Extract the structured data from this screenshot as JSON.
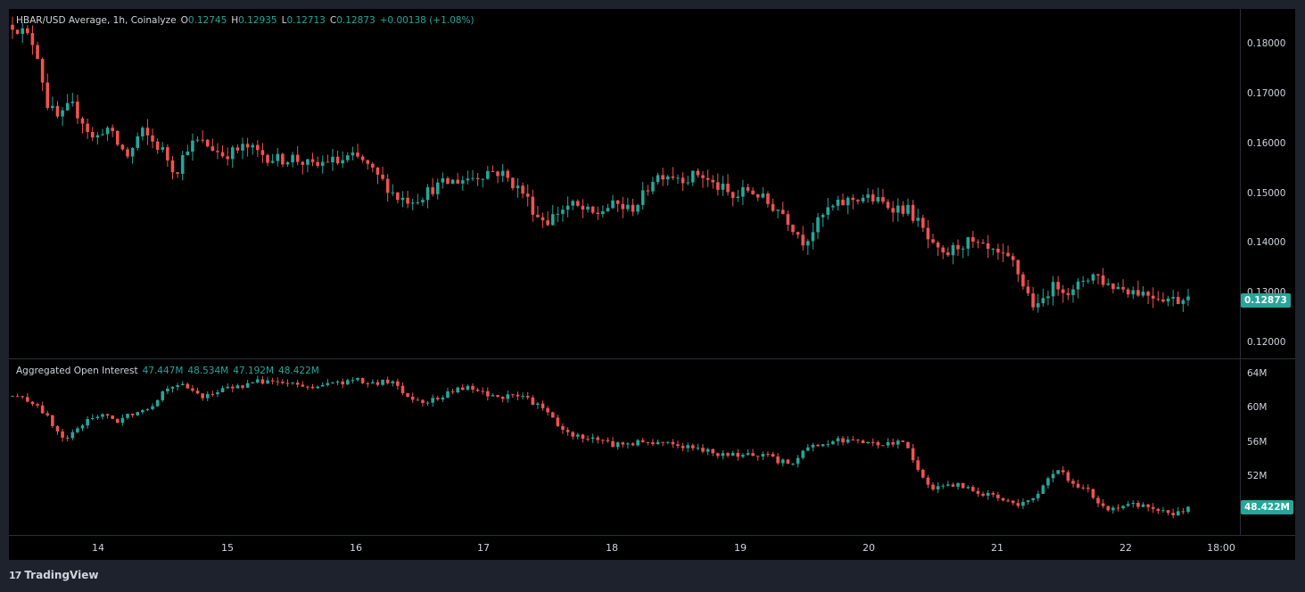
{
  "price_legend": {
    "title": "HBAR/USD Average, 1h, Coinalyze",
    "o_key": "O",
    "o_val": "0.12745",
    "h_key": "H",
    "h_val": "0.12935",
    "l_key": "L",
    "l_val": "0.12713",
    "c_key": "C",
    "c_val": "0.12873",
    "change": "+0.00138 (+1.08%)"
  },
  "oi_legend": {
    "title": "Aggregated Open Interest",
    "v1": "47.447M",
    "v2": "48.534M",
    "v3": "47.192M",
    "v4": "48.422M"
  },
  "price_axis": {
    "ticks": [
      "0.18000",
      "0.17000",
      "0.16000",
      "0.15000",
      "0.14000",
      "0.13000",
      "0.12000"
    ],
    "last_label": "0.12873"
  },
  "oi_axis": {
    "ticks": [
      "64M",
      "60M",
      "56M",
      "52M"
    ],
    "last_label": "48.422M"
  },
  "time_axis": {
    "ticks": [
      "14",
      "15",
      "16",
      "17",
      "18",
      "19",
      "20",
      "21",
      "22",
      "18:00"
    ]
  },
  "brand": {
    "name": "TradingView",
    "logo": "17"
  },
  "colors": {
    "up": "#26a69a",
    "down": "#ef5350",
    "background": "#000000",
    "grid": "#2a2e39",
    "frame": "#1e222d"
  },
  "chart_data": [
    {
      "type": "candlestick",
      "title": "HBAR/USD Average, 1h, Coinalyze",
      "ylim": [
        0.117,
        0.183
      ],
      "x": [
        "13 00:00",
        "13 12:00",
        "14 00:00",
        "14 12:00",
        "15 00:00",
        "15 12:00",
        "16 00:00",
        "16 12:00",
        "17 00:00",
        "17 12:00",
        "18 00:00",
        "18 12:00",
        "19 00:00",
        "19 12:00",
        "20 00:00",
        "20 12:00",
        "21 00:00",
        "21 12:00",
        "22 00:00",
        "22 12:00"
      ],
      "path": [
        [
          0.18,
          0.1785,
          0.176,
          0.165,
          0.162,
          0.165,
          0.162,
          0.158,
          0.161,
          0.1575,
          0.155,
          0.16,
          0.158,
          0.156,
          0.152,
          0.157,
          0.158,
          0.157,
          0.1555,
          0.156,
          0.157,
          0.156,
          0.155,
          0.1545,
          0.155,
          0.154,
          0.153,
          0.1545,
          0.154,
          0.155,
          0.1545,
          0.152,
          0.15,
          0.1475,
          0.147,
          0.1475,
          0.149,
          0.15,
          0.1505,
          0.151,
          0.1515,
          0.1525,
          0.152,
          0.15,
          0.148,
          0.144,
          0.143,
          0.145,
          0.146,
          0.145,
          0.144,
          0.1455,
          0.146,
          0.145,
          0.147,
          0.151,
          0.152,
          0.1515,
          0.151,
          0.152,
          0.15,
          0.149,
          0.147,
          0.149,
          0.148,
          0.146,
          0.145,
          0.142,
          0.139,
          0.142,
          0.145,
          0.146,
          0.147,
          0.1475,
          0.147,
          0.146,
          0.1455,
          0.145,
          0.142,
          0.138,
          0.136,
          0.138,
          0.139,
          0.138,
          0.137,
          0.136,
          0.135,
          0.13,
          0.126,
          0.13,
          0.131,
          0.129,
          0.132,
          0.133,
          0.131,
          0.1305,
          0.13,
          0.1295,
          0.129,
          0.1285,
          0.128,
          0.1287
        ]
      ]
    },
    {
      "type": "candlestick",
      "title": "Aggregated Open Interest",
      "ylim": [
        45.2,
        65.2
      ],
      "path": [
        [
          61.0,
          60.6,
          60.0,
          58.0,
          56.0,
          57.0,
          58.5,
          59.0,
          58.0,
          58.8,
          59.5,
          60.0,
          62.0,
          62.5,
          61.5,
          61.0,
          61.5,
          62.0,
          62.2,
          62.6,
          62.8,
          62.5,
          62.3,
          62.0,
          62.2,
          62.4,
          62.6,
          62.8,
          62.3,
          62.6,
          62.5,
          60.8,
          60.5,
          60.6,
          61.2,
          62.0,
          61.8,
          61.2,
          61.0,
          60.9,
          61.0,
          60.0,
          59.0,
          57.0,
          56.5,
          56.3,
          56.0,
          55.5,
          55.6,
          55.8,
          55.6,
          55.9,
          55.4,
          55.2,
          54.8,
          54.5,
          54.4,
          54.0,
          54.5,
          54.2,
          53.5,
          53.5,
          55.0,
          55.5,
          55.8,
          56.0,
          55.7,
          55.6,
          55.5,
          55.7,
          55.6,
          52.0,
          50.5,
          50.6,
          50.9,
          50.4,
          49.8,
          49.6,
          49.2,
          48.6,
          49.5,
          51.5,
          52.5,
          51.0,
          50.4,
          49.0,
          48.0,
          48.5,
          48.6,
          48.4,
          48.0,
          47.6,
          48.42
        ]
      ]
    }
  ]
}
